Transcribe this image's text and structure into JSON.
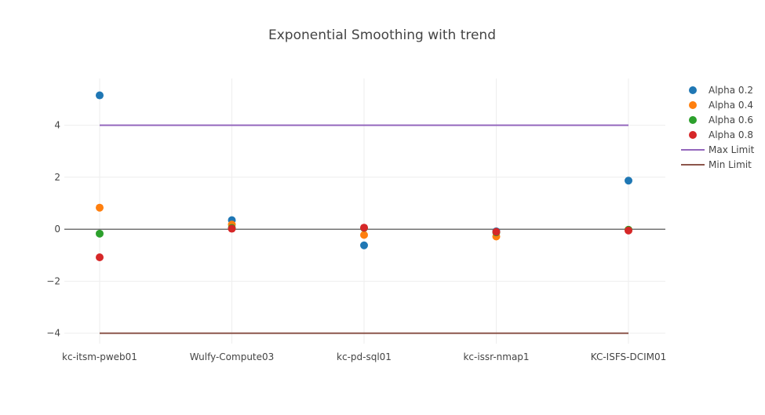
{
  "chart_data": {
    "type": "scatter",
    "title": "Exponential Smoothing with trend",
    "xlabel": "",
    "ylabel": "",
    "categories": [
      "kc-itsm-pweb01",
      "Wulfy-Compute03",
      "kc-pd-sql01",
      "kc-issr-nmap1",
      "KC-ISFS-DCIM01"
    ],
    "y_ticks": [
      -4,
      -2,
      0,
      2,
      4
    ],
    "y_tick_labels": [
      "−4",
      "−2",
      "0",
      "2",
      "4"
    ],
    "ylim": [
      -4.4,
      5.8
    ],
    "grid": true,
    "legend_position": "right",
    "series": [
      {
        "name": "Alpha 0.2",
        "kind": "markers",
        "color": "#1f77b4",
        "values": [
          5.15,
          0.35,
          -0.62,
          -0.08,
          1.87
        ]
      },
      {
        "name": "Alpha 0.4",
        "kind": "markers",
        "color": "#ff7f0e",
        "values": [
          0.83,
          0.18,
          -0.22,
          -0.28,
          -0.02
        ]
      },
      {
        "name": "Alpha 0.6",
        "kind": "markers",
        "color": "#2ca02c",
        "values": [
          -0.17,
          0.05,
          0.05,
          -0.12,
          -0.02
        ]
      },
      {
        "name": "Alpha 0.8",
        "kind": "markers",
        "color": "#d62728",
        "values": [
          -1.08,
          0.02,
          0.06,
          -0.1,
          -0.05
        ]
      },
      {
        "name": "Max Limit",
        "kind": "line",
        "color": "#9467bd",
        "values": [
          4,
          4,
          4,
          4,
          4
        ]
      },
      {
        "name": "Min Limit",
        "kind": "line",
        "color": "#8c564b",
        "values": [
          -4,
          -4,
          -4,
          -4,
          -4
        ]
      }
    ]
  }
}
